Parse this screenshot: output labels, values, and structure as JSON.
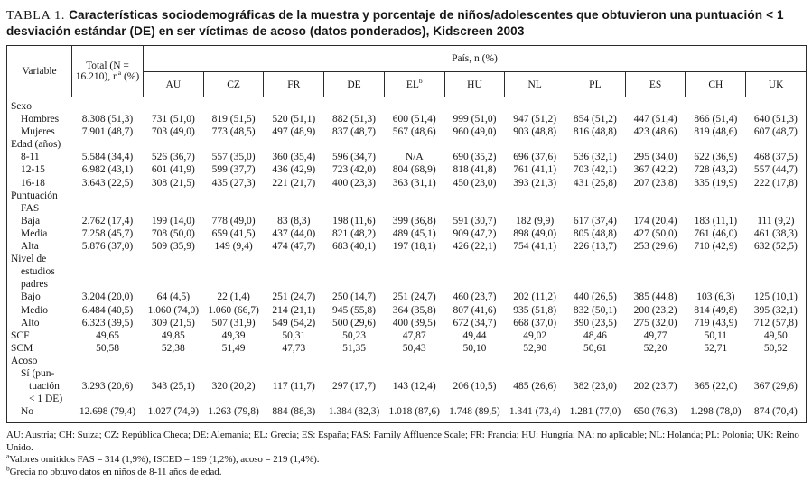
{
  "title": {
    "label": "TABLA 1.",
    "text": "Características sociodemográficas de la muestra y porcentaje de niños/adolescentes que obtuvieron una puntuación < 1 desviación estándar (DE) en ser víctimas de acoso (datos ponderados), Kidscreen 2003"
  },
  "table": {
    "header": {
      "variable": "Variable",
      "total_pre": "Total (N = 16.210), n",
      "total_sup": "a",
      "total_post": " (%)",
      "pais_label": "País, n (%)",
      "countries": [
        {
          "code": "AU",
          "sup": ""
        },
        {
          "code": "CZ",
          "sup": ""
        },
        {
          "code": "FR",
          "sup": ""
        },
        {
          "code": "DE",
          "sup": ""
        },
        {
          "code": "EL",
          "sup": "b"
        },
        {
          "code": "HU",
          "sup": ""
        },
        {
          "code": "NL",
          "sup": ""
        },
        {
          "code": "PL",
          "sup": ""
        },
        {
          "code": "ES",
          "sup": ""
        },
        {
          "code": "CH",
          "sup": ""
        },
        {
          "code": "UK",
          "sup": ""
        }
      ]
    },
    "rows": [
      {
        "type": "section",
        "label_lines": [
          [
            "Sexo",
            0
          ]
        ]
      },
      {
        "type": "data",
        "label_lines": [
          [
            "Hombres",
            1
          ]
        ],
        "values": [
          "8.308 (51,3)",
          "731 (51,0)",
          "819 (51,5)",
          "520 (51,1)",
          "882 (51,3)",
          "600 (51,4)",
          "999 (51,0)",
          "947 (51,2)",
          "854 (51,2)",
          "447 (51,4)",
          "866 (51,4)",
          "640 (51,3)"
        ]
      },
      {
        "type": "data",
        "label_lines": [
          [
            "Mujeres",
            1
          ]
        ],
        "values": [
          "7.901 (48,7)",
          "703 (49,0)",
          "773 (48,5)",
          "497 (48,9)",
          "837 (48,7)",
          "567 (48,6)",
          "960 (49,0)",
          "903 (48,8)",
          "816 (48,8)",
          "423 (48,6)",
          "819 (48,6)",
          "607 (48,7)"
        ]
      },
      {
        "type": "section",
        "label_lines": [
          [
            "Edad (años)",
            0
          ]
        ]
      },
      {
        "type": "data",
        "label_lines": [
          [
            "8-11",
            1
          ]
        ],
        "values": [
          "5.584 (34,4)",
          "526 (36,7)",
          "557 (35,0)",
          "360 (35,4)",
          "596 (34,7)",
          "N/A",
          "690 (35,2)",
          "696 (37,6)",
          "536 (32,1)",
          "295 (34,0)",
          "622 (36,9)",
          "468 (37,5)"
        ]
      },
      {
        "type": "data",
        "label_lines": [
          [
            "12-15",
            1
          ]
        ],
        "values": [
          "6.982 (43,1)",
          "601 (41,9)",
          "599 (37,7)",
          "436 (42,9)",
          "723 (42,0)",
          "804 (68,9)",
          "818 (41,8)",
          "761 (41,1)",
          "703 (42,1)",
          "367 (42,2)",
          "728 (43,2)",
          "557 (44,7)"
        ]
      },
      {
        "type": "data",
        "label_lines": [
          [
            "16-18",
            1
          ]
        ],
        "values": [
          "3.643 (22,5)",
          "308 (21,5)",
          "435 (27,3)",
          "221 (21,7)",
          "400 (23,3)",
          "363 (31,1)",
          "450 (23,0)",
          "393 (21,3)",
          "431 (25,8)",
          "207 (23,8)",
          "335 (19,9)",
          "222 (17,8)"
        ]
      },
      {
        "type": "section",
        "label_lines": [
          [
            "Puntuación",
            0
          ],
          [
            "FAS",
            1
          ]
        ]
      },
      {
        "type": "data",
        "label_lines": [
          [
            "Baja",
            1
          ]
        ],
        "values": [
          "2.762 (17,4)",
          "199 (14,0)",
          "778 (49,0)",
          "83 (8,3)",
          "198 (11,6)",
          "399 (36,8)",
          "591 (30,7)",
          "182 (9,9)",
          "617 (37,4)",
          "174 (20,4)",
          "183 (11,1)",
          "111 (9,2)"
        ]
      },
      {
        "type": "data",
        "label_lines": [
          [
            "Media",
            1
          ]
        ],
        "values": [
          "7.258 (45,7)",
          "708 (50,0)",
          "659 (41,5)",
          "437 (44,0)",
          "821 (48,2)",
          "489 (45,1)",
          "909 (47,2)",
          "898 (49,0)",
          "805 (48,8)",
          "427 (50,0)",
          "761 (46,0)",
          "461 (38,3)"
        ]
      },
      {
        "type": "data",
        "label_lines": [
          [
            "Alta",
            1
          ]
        ],
        "values": [
          "5.876 (37,0)",
          "509 (35,9)",
          "149 (9,4)",
          "474 (47,7)",
          "683 (40,1)",
          "197 (18,1)",
          "426 (22,1)",
          "754 (41,1)",
          "226 (13,7)",
          "253 (29,6)",
          "710 (42,9)",
          "632 (52,5)"
        ]
      },
      {
        "type": "section",
        "label_lines": [
          [
            "Nivel de",
            0
          ],
          [
            "estudios",
            1
          ],
          [
            "padres",
            1
          ]
        ]
      },
      {
        "type": "data",
        "label_lines": [
          [
            "Bajo",
            1
          ]
        ],
        "values": [
          "3.204 (20,0)",
          "64 (4,5)",
          "22 (1,4)",
          "251 (24,7)",
          "250 (14,7)",
          "251 (24,7)",
          "460 (23,7)",
          "202 (11,2)",
          "440 (26,5)",
          "385 (44,8)",
          "103 (6,3)",
          "125 (10,1)"
        ]
      },
      {
        "type": "data",
        "label_lines": [
          [
            "Medio",
            1
          ]
        ],
        "values": [
          "6.484 (40,5)",
          "1.060 (74,0)",
          "1.060 (66,7)",
          "214 (21,1)",
          "945 (55,8)",
          "364 (35,8)",
          "807 (41,6)",
          "935 (51,8)",
          "832 (50,1)",
          "200 (23,2)",
          "814 (49,8)",
          "395 (32,1)"
        ]
      },
      {
        "type": "data",
        "label_lines": [
          [
            "Alto",
            1
          ]
        ],
        "values": [
          "6.323 (39,5)",
          "309 (21,5)",
          "507 (31,9)",
          "549 (54,2)",
          "500 (29,6)",
          "400 (39,5)",
          "672 (34,7)",
          "668 (37,0)",
          "390 (23,5)",
          "275 (32,0)",
          "719 (43,9)",
          "712 (57,8)"
        ]
      },
      {
        "type": "data",
        "label_lines": [
          [
            "SCF",
            0
          ]
        ],
        "values": [
          "49,65",
          "49,85",
          "49,39",
          "50,31",
          "50,23",
          "47,87",
          "49,44",
          "49,02",
          "48,46",
          "49,77",
          "50,11",
          "49,50"
        ]
      },
      {
        "type": "data",
        "label_lines": [
          [
            "SCM",
            0
          ]
        ],
        "values": [
          "50,58",
          "52,38",
          "51,49",
          "47,73",
          "51,35",
          "50,43",
          "50,10",
          "52,90",
          "50,61",
          "52,20",
          "52,71",
          "50,52"
        ]
      },
      {
        "type": "section",
        "label_lines": [
          [
            "Acoso",
            0
          ]
        ]
      },
      {
        "type": "data",
        "label_lines": [
          [
            "Sí (pun-",
            1
          ],
          [
            "tuación",
            2
          ],
          [
            "< 1 DE)",
            2
          ]
        ],
        "values": [
          "3.293 (20,6)",
          "343 (25,1)",
          "320 (20,2)",
          "117 (11,7)",
          "297 (17,7)",
          "143 (12,4)",
          "206 (10,5)",
          "485 (26,6)",
          "382 (23,0)",
          "202 (23,7)",
          "365 (22,0)",
          "367 (29,6)"
        ]
      },
      {
        "type": "data",
        "label_lines": [
          [
            "No",
            1
          ]
        ],
        "values": [
          "12.698 (79,4)",
          "1.027 (74,9)",
          "1.263 (79,8)",
          "884 (88,3)",
          "1.384 (82,3)",
          "1.018 (87,6)",
          "1.748 (89,5)",
          "1.341 (73,4)",
          "1.281 (77,0)",
          "650 (76,3)",
          "1.298 (78,0)",
          "874 (70,4)"
        ]
      }
    ]
  },
  "footnotes": [
    {
      "sup": "",
      "text": "AU: Austria; CH: Suiza; CZ: República Checa; DE: Alemania; EL: Grecia; ES: España; FAS: Family Affluence Scale; FR: Francia; HU: Hungría; NA: no aplicable; NL: Holanda; PL: Polonia; UK: Reino Unido."
    },
    {
      "sup": "a",
      "text": "Valores omitidos FAS = 314 (1,9%), ISCED = 199 (1,2%), acoso = 219 (1,4%)."
    },
    {
      "sup": "b",
      "text": "Grecia no obtuvo datos en niños de 8-11 años de edad."
    }
  ]
}
